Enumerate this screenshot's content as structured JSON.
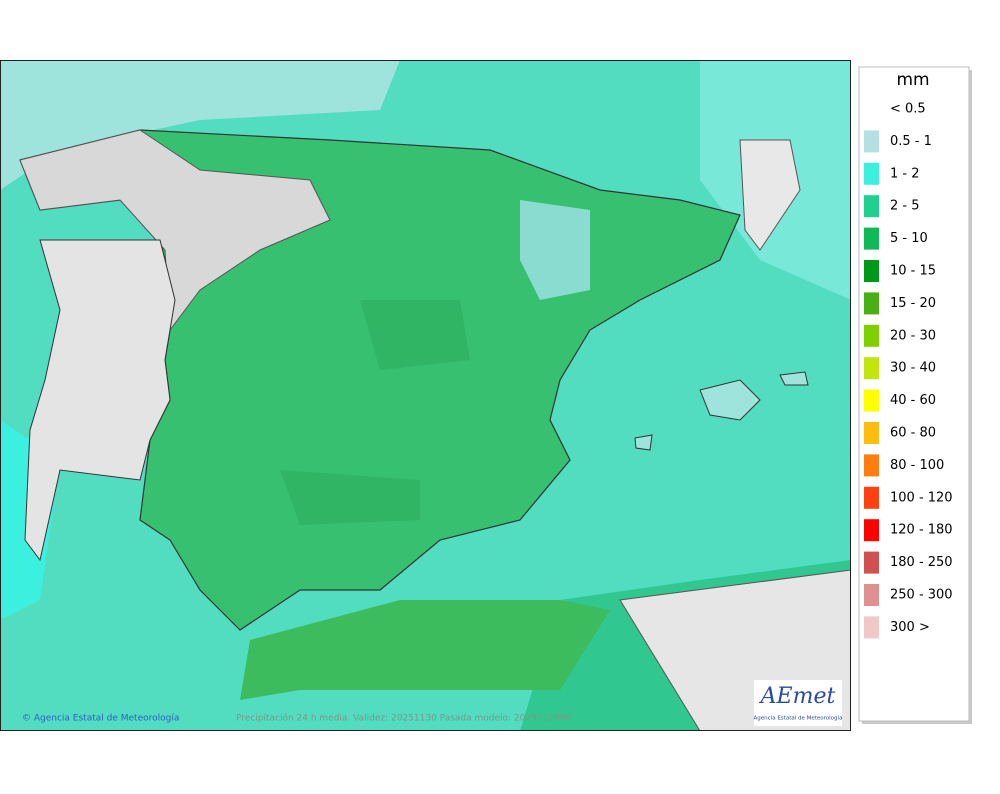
{
  "legend": {
    "unit": "mm",
    "items": [
      {
        "label": "< 0.5",
        "color": "#ffffff"
      },
      {
        "label": "0.5 - 1",
        "color": "#b4e0e4"
      },
      {
        "label": "1 - 2",
        "color": "#3cf0e0"
      },
      {
        "label": "2 - 5",
        "color": "#20d090"
      },
      {
        "label": "5 - 10",
        "color": "#10b858"
      },
      {
        "label": "10 - 15",
        "color": "#009818"
      },
      {
        "label": "15 - 20",
        "color": "#48b014"
      },
      {
        "label": "20 - 30",
        "color": "#80d000"
      },
      {
        "label": "30 - 40",
        "color": "#c4e410"
      },
      {
        "label": "40 - 60",
        "color": "#ffff00"
      },
      {
        "label": "60 - 80",
        "color": "#ffbc10"
      },
      {
        "label": "80 - 100",
        "color": "#ff7c10"
      },
      {
        "label": "100 - 120",
        "color": "#ff4010"
      },
      {
        "label": "120 - 180",
        "color": "#ff0000"
      },
      {
        "label": "180 - 250",
        "color": "#d05050"
      },
      {
        "label": "250 - 300",
        "color": "#e09090"
      },
      {
        "label": "300 >",
        "color": "#f0c8c8"
      }
    ]
  },
  "footer": {
    "credit": "© Agencia Estatal de Meteorología",
    "caption": "Precipitación 24 h media. Validez: 20251130 Pasada modelo: 2025112800"
  },
  "logo": {
    "name": "AEmet",
    "subtitle": "Agencia Estatal de Meteorología"
  }
}
